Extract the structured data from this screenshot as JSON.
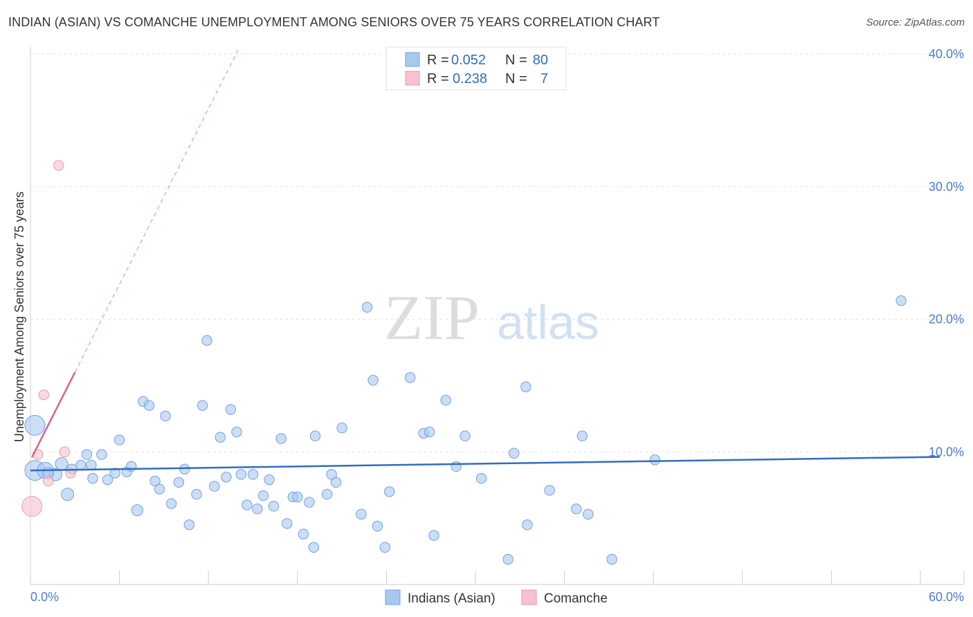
{
  "title": "INDIAN (ASIAN) VS COMANCHE UNEMPLOYMENT AMONG SENIORS OVER 75 YEARS CORRELATION CHART",
  "source": "Source: ZipAtlas.com",
  "watermark": {
    "zip": "ZIP",
    "atlas": "atlas"
  },
  "colors": {
    "blue_fill": "#a9c8f0",
    "blue_stroke": "#6fa0df",
    "blue_line": "#2f6cc4",
    "pink_fill": "#f7c1cf",
    "pink_stroke": "#e899ad",
    "pink_line": "#e06088",
    "grid": "#e3e3e3",
    "tick_text": "#4a7cc9"
  },
  "legend_top": {
    "rows": [
      {
        "r_label": "R =",
        "r_value": "0.052",
        "n_label": "N =",
        "n_value": "80"
      },
      {
        "r_label": "R =",
        "r_value": "0.238",
        "n_label": "N =",
        "n_value": "7"
      }
    ]
  },
  "chart_data": {
    "type": "scatter",
    "xlabel": "",
    "ylabel": "Unemployment Among Seniors over 75 years",
    "xlim": [
      0,
      60
    ],
    "ylim": [
      0,
      40
    ],
    "y_ticks": [
      {
        "value": 10,
        "label": "10.0%"
      },
      {
        "value": 20,
        "label": "20.0%"
      },
      {
        "value": 30,
        "label": "30.0%"
      },
      {
        "value": 40,
        "label": "40.0%"
      }
    ],
    "x_tick_labels": {
      "min": "0.0%",
      "max": "60.0%"
    },
    "x_minor_ticks": [
      0,
      6,
      12,
      18,
      24,
      30,
      36,
      42,
      48,
      54,
      60
    ],
    "grid": true,
    "legend": [
      "Indians (Asian)",
      "Comanche"
    ],
    "series": [
      {
        "name": "Indians (Asian)",
        "points": [
          [
            0.3,
            12.0,
            1.6
          ],
          [
            0.3,
            8.6,
            1.6
          ],
          [
            1.0,
            8.6,
            1.3
          ],
          [
            1.7,
            8.3,
            1.0
          ],
          [
            2.1,
            9.1,
            1.0
          ],
          [
            2.5,
            6.8,
            1.0
          ],
          [
            2.8,
            8.7,
            0.8
          ],
          [
            3.4,
            9.0,
            0.8
          ],
          [
            3.8,
            9.8,
            0.8
          ],
          [
            4.1,
            9.0,
            0.8
          ],
          [
            4.2,
            8.0,
            0.8
          ],
          [
            4.8,
            9.8,
            0.8
          ],
          [
            5.2,
            7.9,
            0.8
          ],
          [
            5.7,
            8.4,
            0.8
          ],
          [
            6.0,
            10.9,
            0.8
          ],
          [
            6.5,
            8.5,
            0.8
          ],
          [
            6.8,
            8.9,
            0.8
          ],
          [
            7.2,
            5.6,
            0.9
          ],
          [
            7.6,
            13.8,
            0.8
          ],
          [
            8.0,
            13.5,
            0.8
          ],
          [
            8.4,
            7.8,
            0.8
          ],
          [
            8.7,
            7.2,
            0.8
          ],
          [
            9.1,
            12.7,
            0.8
          ],
          [
            9.5,
            6.1,
            0.8
          ],
          [
            10.0,
            7.7,
            0.8
          ],
          [
            10.4,
            8.7,
            0.8
          ],
          [
            10.7,
            4.5,
            0.8
          ],
          [
            11.2,
            6.8,
            0.8
          ],
          [
            11.6,
            13.5,
            0.8
          ],
          [
            11.9,
            18.4,
            0.8
          ],
          [
            12.4,
            7.4,
            0.8
          ],
          [
            12.8,
            11.1,
            0.8
          ],
          [
            13.2,
            8.1,
            0.8
          ],
          [
            13.5,
            13.2,
            0.8
          ],
          [
            13.9,
            11.5,
            0.8
          ],
          [
            14.2,
            8.3,
            0.8
          ],
          [
            14.6,
            6.0,
            0.8
          ],
          [
            15.0,
            8.3,
            0.8
          ],
          [
            15.3,
            5.7,
            0.8
          ],
          [
            15.7,
            6.7,
            0.8
          ],
          [
            16.1,
            7.9,
            0.8
          ],
          [
            16.4,
            5.9,
            0.8
          ],
          [
            16.9,
            11.0,
            0.8
          ],
          [
            17.3,
            4.6,
            0.8
          ],
          [
            17.7,
            6.6,
            0.8
          ],
          [
            18.0,
            6.6,
            0.8
          ],
          [
            18.4,
            3.8,
            0.8
          ],
          [
            18.8,
            6.2,
            0.8
          ],
          [
            19.1,
            2.8,
            0.8
          ],
          [
            19.2,
            11.2,
            0.8
          ],
          [
            20.0,
            6.8,
            0.8
          ],
          [
            20.3,
            8.3,
            0.8
          ],
          [
            20.6,
            7.7,
            0.8
          ],
          [
            21.0,
            11.8,
            0.8
          ],
          [
            22.3,
            5.3,
            0.8
          ],
          [
            22.7,
            20.9,
            0.8
          ],
          [
            23.1,
            15.4,
            0.8
          ],
          [
            23.4,
            4.4,
            0.8
          ],
          [
            23.9,
            2.8,
            0.8
          ],
          [
            24.2,
            7.0,
            0.8
          ],
          [
            25.6,
            15.6,
            0.8
          ],
          [
            26.5,
            11.4,
            0.8
          ],
          [
            26.9,
            11.5,
            0.8
          ],
          [
            27.2,
            3.7,
            0.8
          ],
          [
            28.0,
            13.9,
            0.8
          ],
          [
            28.7,
            8.9,
            0.8
          ],
          [
            29.3,
            11.2,
            0.8
          ],
          [
            30.4,
            8.0,
            0.8
          ],
          [
            32.2,
            1.9,
            0.8
          ],
          [
            32.6,
            9.9,
            0.8
          ],
          [
            33.4,
            14.9,
            0.8
          ],
          [
            33.5,
            4.5,
            0.8
          ],
          [
            35.0,
            7.1,
            0.8
          ],
          [
            36.8,
            5.7,
            0.8
          ],
          [
            37.2,
            11.2,
            0.8
          ],
          [
            37.6,
            5.3,
            0.8
          ],
          [
            39.2,
            1.9,
            0.8
          ],
          [
            42.1,
            9.4,
            0.8
          ],
          [
            58.7,
            21.4,
            0.8
          ],
          [
            1.2,
            8.4,
            0.9
          ]
        ],
        "trend": {
          "x0": 0,
          "y0": 8.6,
          "x1": 60,
          "y1": 9.6
        }
      },
      {
        "name": "Comanche",
        "points": [
          [
            0.1,
            5.9,
            1.6
          ],
          [
            0.5,
            9.8,
            0.8
          ],
          [
            0.9,
            14.3,
            0.8
          ],
          [
            1.2,
            7.8,
            0.8
          ],
          [
            1.9,
            31.6,
            0.8
          ],
          [
            2.3,
            10.0,
            0.8
          ],
          [
            2.7,
            8.4,
            0.8
          ]
        ],
        "trend_solid": {
          "x0": 0.1,
          "y0": 9.6,
          "x1": 3.0,
          "y1": 16.0
        },
        "trend_dashed": {
          "x0": 3.0,
          "y0": 16.0,
          "x1": 14.0,
          "y1": 40.3
        }
      }
    ]
  }
}
